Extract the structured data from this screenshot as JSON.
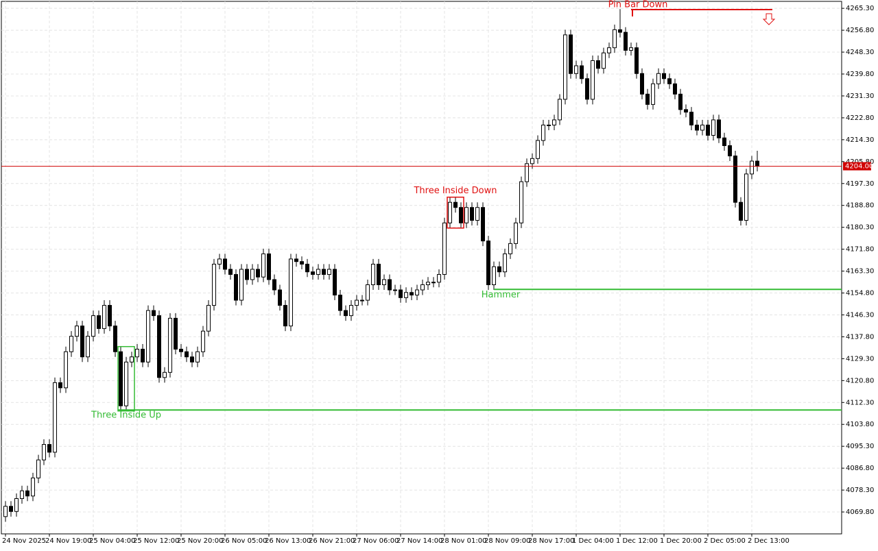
{
  "chart_data": {
    "type": "candlestick",
    "categories": [
      "24 Nov 2025",
      null,
      null,
      null,
      null,
      null,
      null,
      null,
      "24 Nov 19:00",
      null,
      null,
      null,
      null,
      null,
      null,
      null,
      "25 Nov 04:00",
      null,
      null,
      null,
      null,
      null,
      null,
      null,
      "25 Nov 12:00",
      null,
      null,
      null,
      null,
      null,
      null,
      null,
      "25 Nov 20:00",
      null,
      null,
      null,
      null,
      null,
      null,
      null,
      "26 Nov 05:00",
      null,
      null,
      null,
      null,
      null,
      null,
      null,
      "26 Nov 13:00",
      null,
      null,
      null,
      null,
      null,
      null,
      null,
      "26 Nov 21:00",
      null,
      null,
      null,
      null,
      null,
      null,
      null,
      "27 Nov 06:00",
      null,
      null,
      null,
      null,
      null,
      null,
      null,
      "27 Nov 14:00",
      null,
      null,
      null,
      null,
      null,
      null,
      null,
      "28 Nov 01:00",
      null,
      null,
      null,
      null,
      null,
      null,
      null,
      "28 Nov 09:00",
      null,
      null,
      null,
      null,
      null,
      null,
      null,
      "28 Nov 17:00",
      null,
      null,
      null,
      null,
      null,
      null,
      null,
      "1 Dec 04:00",
      null,
      null,
      null,
      null,
      null,
      null,
      null,
      "1 Dec 12:00",
      null,
      null,
      null,
      null,
      null,
      null,
      null,
      "1 Dec 20:00",
      null,
      null,
      null,
      null,
      null,
      null,
      null,
      "2 Dec 05:00",
      null,
      null,
      null,
      null,
      null,
      null,
      null,
      "2 Dec 13:00",
      null
    ],
    "open": [
      4068,
      4072,
      4070,
      4075,
      4078,
      4076,
      4083,
      4090,
      4096,
      4093,
      4120,
      4118,
      4132,
      4138,
      4142,
      4130,
      4138,
      4146,
      4141,
      4150,
      4142,
      4132,
      4111,
      4128,
      4130,
      4133,
      4128,
      4148,
      4146,
      4122,
      4124,
      4145,
      4133,
      4132,
      4130,
      4128,
      4132,
      4140,
      4150,
      4166,
      4168,
      4164,
      4162,
      4152,
      4164,
      4160,
      4164,
      4161,
      4170,
      4160,
      4156,
      4150,
      4142,
      4168,
      4167,
      4166,
      4163,
      4162,
      4164,
      4162,
      4164,
      4154,
      4148,
      4146,
      4150,
      4152,
      4152,
      4158,
      4166,
      4158,
      4160,
      4156,
      4156,
      4153,
      4155,
      4154,
      4156,
      4158,
      4159,
      4159,
      4162,
      4182,
      4190,
      4188,
      4182,
      4188,
      4183,
      4188,
      4175,
      4158,
      4165,
      4163,
      4170,
      4174,
      4182,
      4198,
      4205,
      4207,
      4214,
      4220,
      4220,
      4222,
      4230,
      4255,
      4240,
      4243,
      4238,
      4230,
      4245,
      4242,
      4248,
      4250,
      4257,
      4256,
      4249,
      4250,
      4240,
      4232,
      4228,
      4236,
      4240,
      4238,
      4236,
      4232,
      4226,
      4225,
      4220,
      4218,
      4220,
      4216,
      4222,
      4215,
      4212,
      4208,
      4190,
      4183,
      4201,
      4206
    ],
    "high": [
      4074,
      4074,
      4077,
      4080,
      4080,
      4085,
      4092,
      4098,
      4098,
      4122,
      4122,
      4134,
      4140,
      4144,
      4144,
      4140,
      4148,
      4148,
      4152,
      4152,
      4144,
      4134,
      4130,
      4132,
      4135,
      4135,
      4150,
      4150,
      4148,
      4126,
      4147,
      4147,
      4135,
      4134,
      4132,
      4134,
      4142,
      4152,
      4168,
      4170,
      4170,
      4166,
      4164,
      4166,
      4166,
      4166,
      4166,
      4172,
      4172,
      4162,
      4158,
      4152,
      4170,
      4170,
      4169,
      4168,
      4165,
      4166,
      4166,
      4166,
      4166,
      4156,
      4150,
      4152,
      4154,
      4154,
      4160,
      4168,
      4168,
      4162,
      4162,
      4158,
      4158,
      4157,
      4157,
      4158,
      4160,
      4161,
      4161,
      4164,
      4184,
      4192,
      4192,
      4190,
      4190,
      4190,
      4190,
      4190,
      4177,
      4167,
      4167,
      4172,
      4176,
      4184,
      4200,
      4207,
      4209,
      4216,
      4222,
      4222,
      4224,
      4232,
      4257,
      4257,
      4245,
      4245,
      4240,
      4247,
      4247,
      4250,
      4252,
      4259,
      4265,
      4258,
      4252,
      4252,
      4242,
      4234,
      4238,
      4242,
      4242,
      4240,
      4238,
      4234,
      4228,
      4227,
      4222,
      4222,
      4222,
      4224,
      4224,
      4217,
      4214,
      4210,
      4192,
      4203,
      4208,
      4210
    ],
    "low": [
      4066,
      4068,
      4068,
      4073,
      4074,
      4074,
      4081,
      4088,
      4091,
      4091,
      4116,
      4116,
      4130,
      4136,
      4128,
      4128,
      4136,
      4139,
      4139,
      4140,
      4130,
      4109,
      4109,
      4126,
      4128,
      4126,
      4126,
      4144,
      4120,
      4120,
      4122,
      4131,
      4130,
      4128,
      4126,
      4126,
      4130,
      4138,
      4148,
      4164,
      4162,
      4160,
      4150,
      4150,
      4158,
      4158,
      4159,
      4159,
      4158,
      4154,
      4148,
      4140,
      4140,
      4165,
      4164,
      4161,
      4160,
      4160,
      4160,
      4160,
      4152,
      4146,
      4144,
      4144,
      4148,
      4150,
      4150,
      4156,
      4156,
      4156,
      4154,
      4154,
      4151,
      4151,
      4152,
      4152,
      4154,
      4156,
      4157,
      4157,
      4160,
      4180,
      4186,
      4180,
      4180,
      4181,
      4181,
      4173,
      4156,
      4156,
      4161,
      4161,
      4168,
      4172,
      4180,
      4196,
      4203,
      4205,
      4212,
      4218,
      4218,
      4220,
      4228,
      4238,
      4238,
      4236,
      4228,
      4228,
      4240,
      4240,
      4246,
      4248,
      4254,
      4247,
      4247,
      4238,
      4230,
      4226,
      4226,
      4234,
      4236,
      4234,
      4230,
      4224,
      4223,
      4218,
      4216,
      4216,
      4214,
      4214,
      4213,
      4210,
      4206,
      4188,
      4181,
      4181,
      4199,
      4202
    ],
    "close": [
      4072,
      4070,
      4075,
      4078,
      4076,
      4083,
      4090,
      4096,
      4093,
      4120,
      4118,
      4132,
      4138,
      4142,
      4130,
      4138,
      4146,
      4141,
      4150,
      4142,
      4132,
      4111,
      4128,
      4130,
      4133,
      4128,
      4148,
      4146,
      4122,
      4124,
      4145,
      4133,
      4132,
      4130,
      4128,
      4132,
      4140,
      4150,
      4166,
      4168,
      4164,
      4162,
      4152,
      4164,
      4160,
      4164,
      4161,
      4170,
      4160,
      4156,
      4150,
      4142,
      4168,
      4167,
      4166,
      4163,
      4162,
      4164,
      4162,
      4164,
      4154,
      4148,
      4146,
      4150,
      4152,
      4152,
      4158,
      4166,
      4158,
      4160,
      4156,
      4156,
      4153,
      4155,
      4154,
      4156,
      4158,
      4159,
      4159,
      4162,
      4182,
      4190,
      4188,
      4182,
      4188,
      4183,
      4188,
      4175,
      4158,
      4165,
      4163,
      4170,
      4174,
      4182,
      4198,
      4205,
      4207,
      4214,
      4220,
      4220,
      4222,
      4230,
      4255,
      4240,
      4243,
      4238,
      4230,
      4245,
      4242,
      4248,
      4250,
      4257,
      4256,
      4249,
      4250,
      4240,
      4232,
      4228,
      4236,
      4240,
      4238,
      4236,
      4232,
      4226,
      4225,
      4220,
      4218,
      4220,
      4216,
      4222,
      4215,
      4212,
      4208,
      4190,
      4183,
      4201,
      4206,
      4204
    ],
    "ylim": [
      4061.3,
      4268.0
    ],
    "yticks": [
      {
        "value": 4069.8,
        "label": "4069.80"
      },
      {
        "value": 4078.3,
        "label": "4078.30"
      },
      {
        "value": 4086.8,
        "label": "4086.80"
      },
      {
        "value": 4095.3,
        "label": "4095.30"
      },
      {
        "value": 4103.8,
        "label": "4103.80"
      },
      {
        "value": 4112.3,
        "label": "4112.30"
      },
      {
        "value": 4120.8,
        "label": "4120.80"
      },
      {
        "value": 4129.3,
        "label": "4129.30"
      },
      {
        "value": 4137.8,
        "label": "4137.80"
      },
      {
        "value": 4146.3,
        "label": "4146.30"
      },
      {
        "value": 4154.8,
        "label": "4154.80"
      },
      {
        "value": 4163.3,
        "label": "4163.30"
      },
      {
        "value": 4171.8,
        "label": "4171.80"
      },
      {
        "value": 4180.3,
        "label": "4180.30"
      },
      {
        "value": 4188.8,
        "label": "4188.80"
      },
      {
        "value": 4197.3,
        "label": "4197.30"
      },
      {
        "value": 4205.8,
        "label": "4205.80"
      },
      {
        "value": 4214.3,
        "label": "4214.30"
      },
      {
        "value": 4222.8,
        "label": "4222.80"
      },
      {
        "value": 4231.3,
        "label": "4231.30"
      },
      {
        "value": 4239.8,
        "label": "4239.80"
      },
      {
        "value": 4248.3,
        "label": "4248.30"
      },
      {
        "value": 4256.8,
        "label": "4256.80"
      },
      {
        "value": 4265.3,
        "label": "4265.30"
      }
    ],
    "grid": true,
    "current_price": {
      "value": 4204,
      "label": "4204.00",
      "color": "#d00000"
    },
    "annotations": [
      {
        "text": "Three Inside Up",
        "color": "#33bb33",
        "index": 22,
        "level": 4109.4,
        "box": true
      },
      {
        "text": "Three Inside Down",
        "color": "#e01010",
        "index": 82,
        "level": 4192,
        "box": true
      },
      {
        "text": "Hammer",
        "color": "#33bb33",
        "index": 89,
        "level": 4156.2,
        "box": false
      },
      {
        "text": "Pin Bar Down",
        "color": "#e01010",
        "index": 114,
        "level": 4264.8,
        "box": false,
        "arrow": "down"
      }
    ]
  }
}
